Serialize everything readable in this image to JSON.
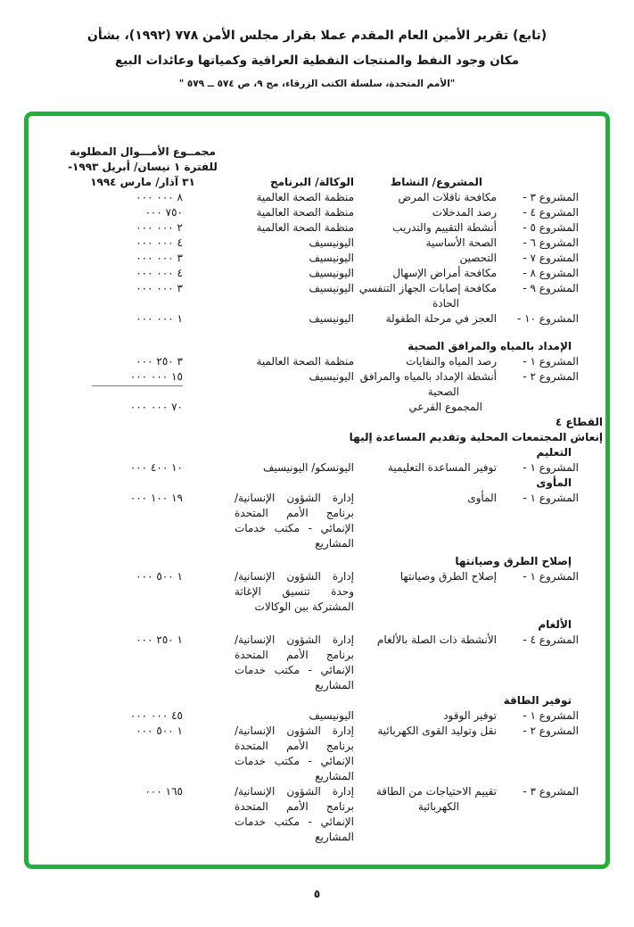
{
  "meta": {
    "accent_green": "#1fb237",
    "text_color": "#161616"
  },
  "header": {
    "line1": "(تابع) تقرير الأمين العام المقدم عملا بقرار مجلس الأمن ٧٧٨ (١٩٩٢)، بشأن",
    "line2": "مكان وجود النفط والمنتجات النفطية العراقية وكمياتها وعائدات البيع",
    "citation": "\"الأمم المتحدة، سلسلة الكتب الزرقاء، مج ٩، ص ٥٧٤ ــ ٥٧٩ \""
  },
  "table": {
    "headers": {
      "amount_line1": "مجمــوع الأمـــوال المطلوبة",
      "amount_line2": "للفترة ١ نيسان/ أبريل ١٩٩٣-",
      "amount_line3": "٣١ آذار/ مارس ١٩٩٤",
      "agency": "الوكالة/ البرنامج",
      "project": "المشروع/ النشاط"
    },
    "rows": [
      {
        "type": "project",
        "label": "المشروع ٣ -",
        "activity": "مكافحة ناقلات المرض",
        "agency": "منظمة الصحة العالمية",
        "amount": "٨ ٠٠٠ ٠٠٠"
      },
      {
        "type": "project",
        "label": "المشروع ٤ -",
        "activity": "رصد المدخلات",
        "agency": "منظمة الصحة العالمية",
        "amount": "٧٥٠ ٠٠٠"
      },
      {
        "type": "project",
        "label": "المشروع ٥ -",
        "activity": "أنشطة التقييم والتدريب",
        "agency": "منظمة الصحة العالمية",
        "amount": "٢ ٠٠٠ ٠٠٠"
      },
      {
        "type": "project",
        "label": "المشروع ٦ -",
        "activity": "الصحة الأساسية",
        "agency": "اليونيسيف",
        "amount": "٤ ٠٠٠ ٠٠٠"
      },
      {
        "type": "project",
        "label": "المشروع ٧ -",
        "activity": "التحصين",
        "agency": "اليونيسيف",
        "amount": "٣ ٠٠٠ ٠٠٠"
      },
      {
        "type": "project",
        "label": "المشروع ٨ -",
        "activity": "مكافحة أمراض الإسهال",
        "agency": "اليونيسيف",
        "amount": "٤ ٠٠٠ ٠٠٠"
      },
      {
        "type": "project",
        "label": "المشروع ٩ -",
        "activity": "مكافحة إصابات الجهاز التنفسي الحادة",
        "agency": "اليونيسيف",
        "amount": "٣ ٠٠٠ ٠٠٠"
      },
      {
        "type": "project",
        "label": "المشروع ١٠ -",
        "activity": "العجز في مرحلة الطفولة",
        "agency": "اليونيسيف",
        "amount": "١ ٠٠٠ ٠٠٠"
      },
      {
        "type": "heading",
        "text": "الإمداد بالمياه والمرافق الصحية"
      },
      {
        "type": "project",
        "label": "المشروع ١ -",
        "activity": "رصد المياه والنفايات",
        "agency": "منظمة الصحة العالمية",
        "amount": "٣ ٢٥٠ ٠٠٠"
      },
      {
        "type": "project",
        "label": "المشروع ٢ -",
        "activity": "أنشطة الإمداد بالمياه والمرافق الصحية",
        "agency": "اليونيسيف",
        "amount": "١٥ ٠٠٠ ٠٠٠",
        "underline": true
      },
      {
        "type": "subtotal",
        "text": "المجموع الفرعي",
        "amount": "٧٠ ٠٠٠ ٠٠٠"
      },
      {
        "type": "sector",
        "text": "القطاع ٤"
      },
      {
        "type": "sector",
        "text": "إنعاش المجتمعات المحلية وتقديم المساعدة إليها"
      },
      {
        "type": "heading",
        "text": "التعليم"
      },
      {
        "type": "project",
        "label": "المشروع ١ -",
        "activity": "توفير المساعدة التعليمية",
        "agency": "اليونسكو/ اليونيسيف",
        "amount": "١٠ ٤٠٠ ٠٠٠"
      },
      {
        "type": "heading",
        "text": "المأوى"
      },
      {
        "type": "project",
        "label": "المشروع ١ -",
        "activity": "المأوى",
        "agency": "إدارة الشؤون الإنسانية/ برنامج الأمم المتحدة الإنمائي - مكتب خدمات المشاريع",
        "amount": "١٩ ١٠٠ ٠٠٠"
      },
      {
        "type": "heading",
        "text": "إصلاح الطرق وصيانتها"
      },
      {
        "type": "project",
        "label": "المشروع ١ -",
        "activity": "إصلاح الطرق وصيانتها",
        "agency": "إدارة الشؤون الإنسانية/ وحدة تنسيق الإغاثة المشتركة بين الوكالات",
        "amount": "١ ٥٠٠ ٠٠٠"
      },
      {
        "type": "heading",
        "text": "الألغام"
      },
      {
        "type": "project",
        "label": "المشروع ٤ -",
        "activity": "الأنشطة ذات الصلة بالألغام",
        "agency": "إدارة الشؤون الإنسانية/ برنامج الأمم المتحدة الإنمائي - مكتب خدمات المشاريع",
        "amount": "١ ٢٥٠ ٠٠٠"
      },
      {
        "type": "heading",
        "text": "توفير الطاقة"
      },
      {
        "type": "project",
        "label": "المشروع ١ -",
        "activity": "توفير الوقود",
        "agency": "اليونيسيف",
        "amount": "٤٥ ٠٠٠ ٠٠٠"
      },
      {
        "type": "project",
        "label": "المشروع ٢ -",
        "activity": "نقل وتوليد القوى الكهربائية",
        "agency": "إدارة الشؤون الإنسانية/ برنامج الأمم المتحدة الإنمائي - مكتب خدمات المشاريع",
        "amount": "١ ٥٠٠ ٠٠٠"
      },
      {
        "type": "project",
        "label": "المشروع ٣ -",
        "activity": "تقييم الاحتياجات من الطاقة الكهربائية",
        "agency": "إدارة الشؤون الإنسانية/ برنامج الأمم المتحدة الإنمائي - مكتب خدمات المشاريع",
        "amount": "١٦٥ ٠٠٠"
      }
    ]
  },
  "footer": {
    "page_number": "٥"
  }
}
